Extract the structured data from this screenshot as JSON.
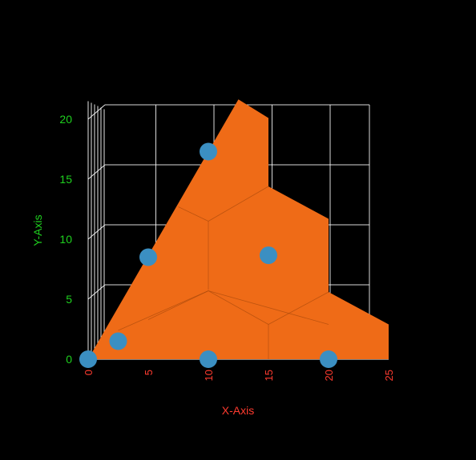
{
  "chart_data": {
    "type": "scatter",
    "title": "",
    "xlabel": "X-Axis",
    "ylabel": "Y-Axis",
    "xlim": [
      0,
      25
    ],
    "ylim": [
      0,
      21.5
    ],
    "xticks": [
      "0",
      "5",
      "10",
      "15",
      "20",
      "25"
    ],
    "yticks": [
      "0",
      "5",
      "10",
      "15",
      "20"
    ],
    "grid": true,
    "legend": "none",
    "points": [
      {
        "x": 0,
        "y": 0
      },
      {
        "x": 2.5,
        "y": 1.5
      },
      {
        "x": 10,
        "y": 0
      },
      {
        "x": 20,
        "y": 0
      },
      {
        "x": 5,
        "y": 8.5
      },
      {
        "x": 15,
        "y": 8.66
      },
      {
        "x": 10,
        "y": 17.3
      }
    ],
    "surface": {
      "description_values_x": [
        0,
        25,
        25,
        20,
        20,
        15,
        15,
        12.5,
        0
      ],
      "description_values_y": [
        0,
        0,
        2.9,
        5.6,
        11.7,
        14.4,
        20.1,
        21.65,
        0
      ]
    },
    "colors": {
      "surface": "#ef6b17",
      "points": "#3b8fc2",
      "x_axis": "#ff3b2f",
      "y_axis": "#1fd11f",
      "grid": "#ffffff",
      "background": "#000000"
    }
  }
}
